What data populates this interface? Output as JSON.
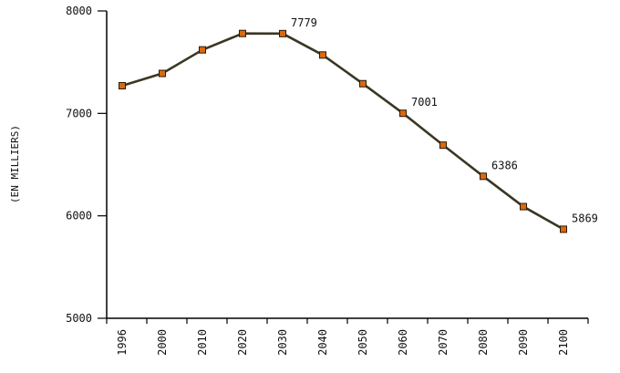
{
  "chart_data": {
    "type": "line",
    "title": "",
    "xlabel": "",
    "ylabel": "(EN MILLIERS)",
    "ylim": [
      5000,
      8000
    ],
    "yticks": [
      "5000",
      "6000",
      "7000",
      "8000"
    ],
    "categories": [
      "1996",
      "2000",
      "2010",
      "2020",
      "2030",
      "2040",
      "2050",
      "2060",
      "2070",
      "2080",
      "2090",
      "2100"
    ],
    "series": [
      {
        "values": [
          7270,
          7390,
          7620,
          7780,
          7779,
          7570,
          7290,
          7001,
          6690,
          6386,
          6090,
          5869
        ],
        "color": "#3a3722",
        "marker_color": "#d86a10"
      }
    ],
    "data_labels": [
      {
        "index": 4,
        "text": "7779"
      },
      {
        "index": 7,
        "text": "7001"
      },
      {
        "index": 9,
        "text": "6386"
      },
      {
        "index": 11,
        "text": "5869"
      }
    ],
    "grid": false,
    "legend": "none"
  }
}
